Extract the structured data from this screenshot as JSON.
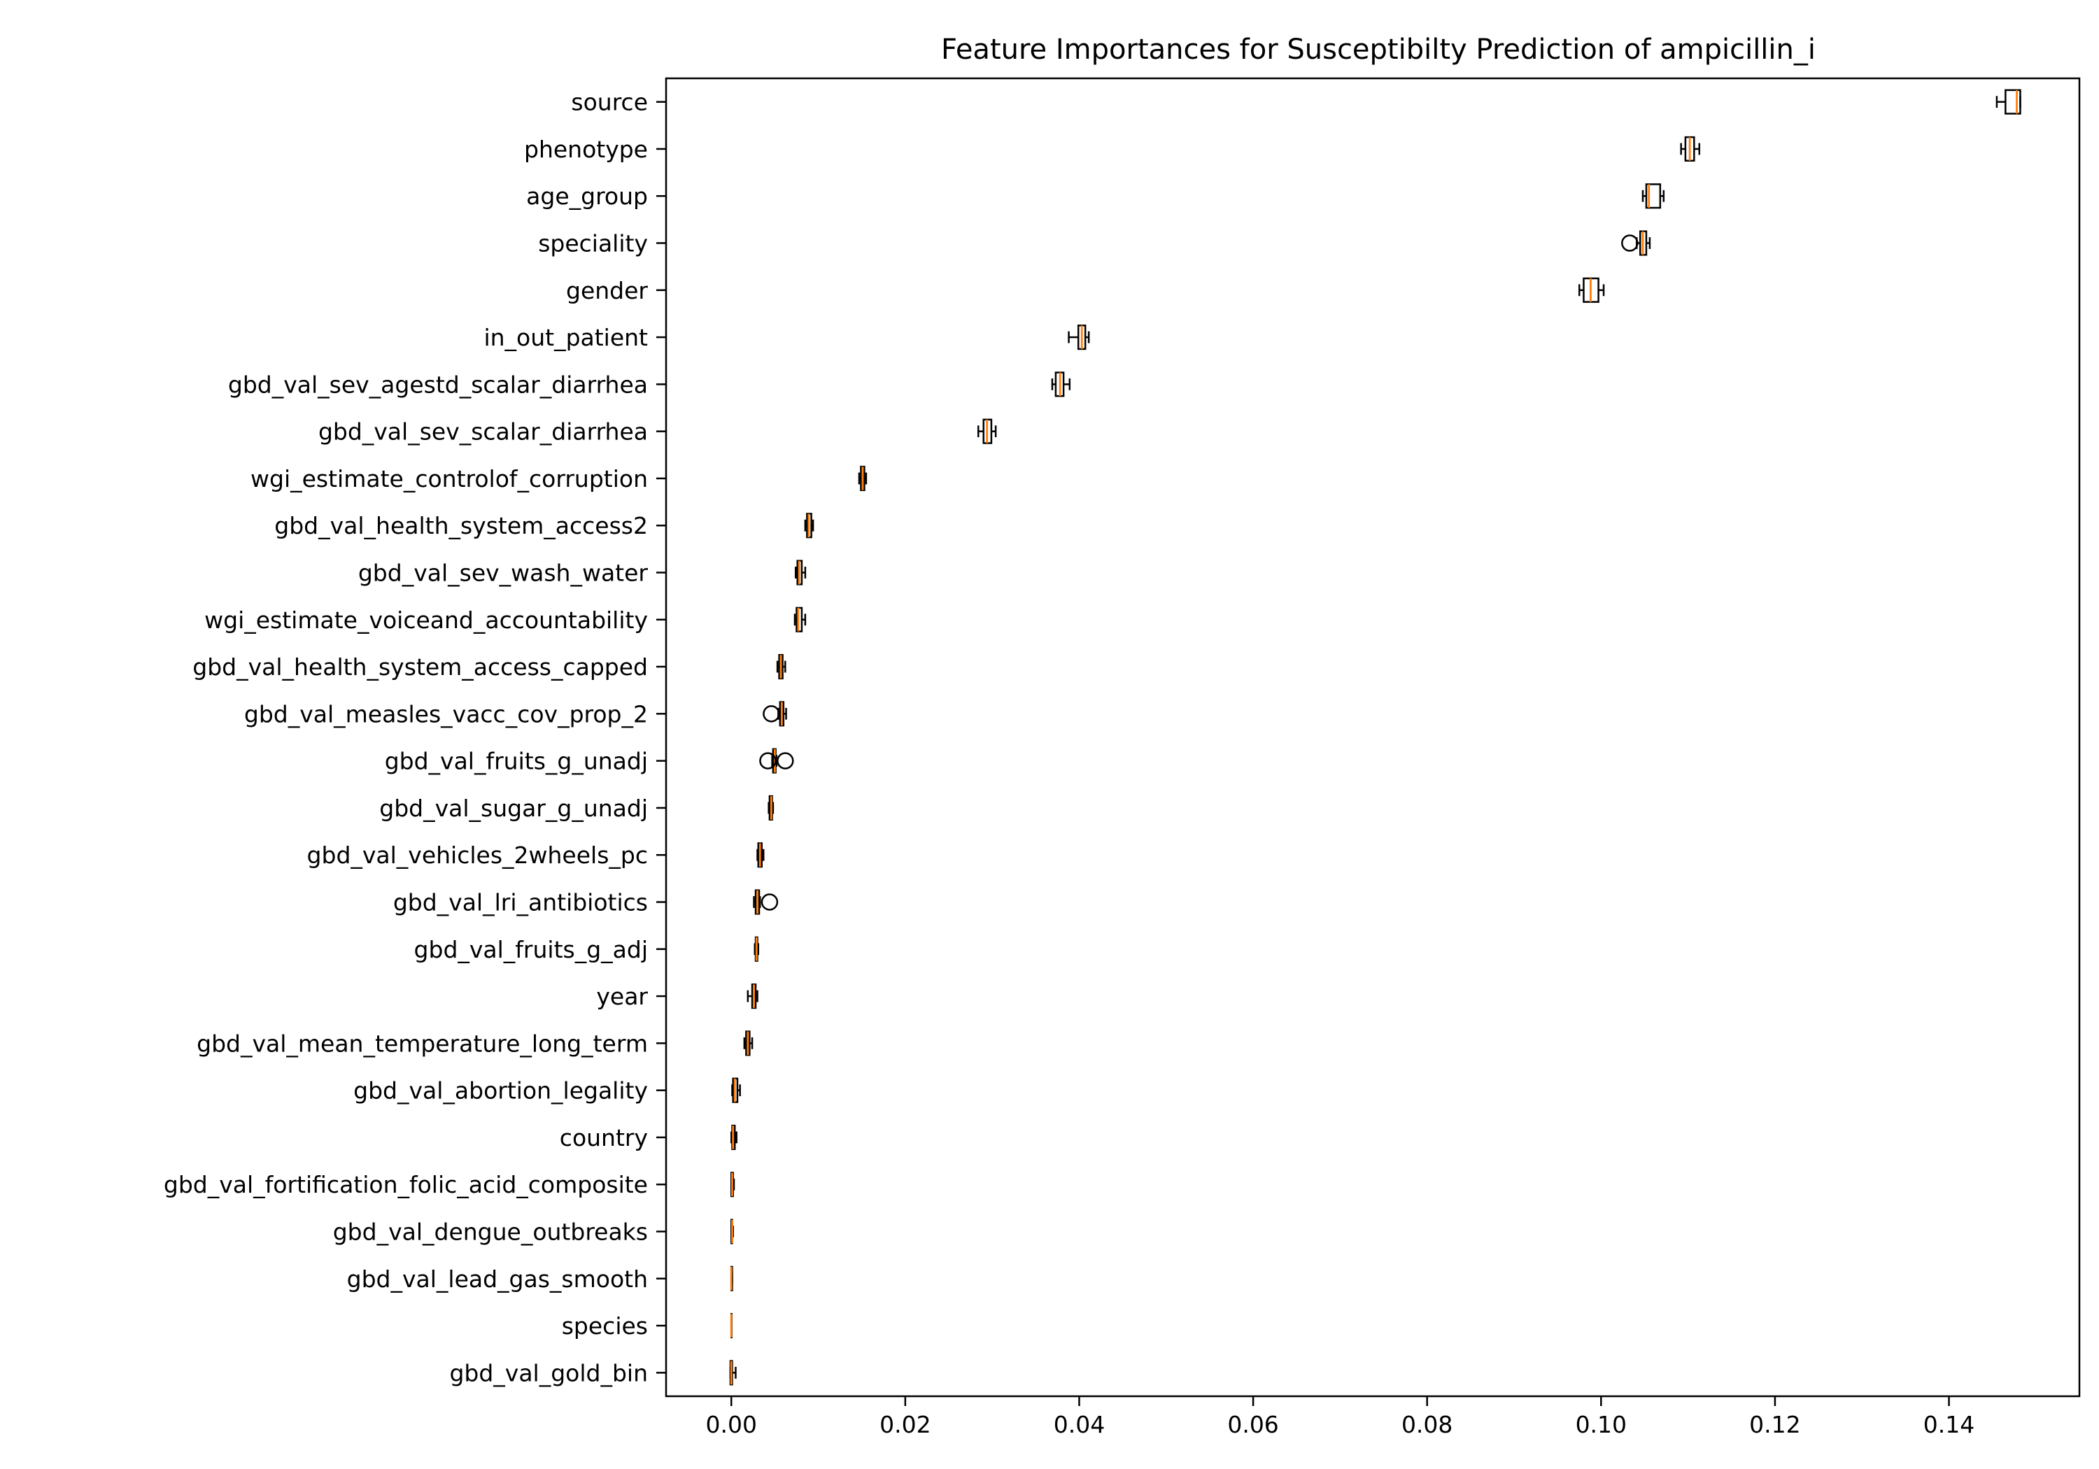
{
  "chart_data": {
    "type": "box",
    "title": "Feature Importances for Susceptibilty Prediction of ampicillin_i",
    "xlabel": "",
    "ylabel": "",
    "xlim": [
      -0.0075,
      0.155
    ],
    "x_ticks": [
      0.0,
      0.02,
      0.04,
      0.06,
      0.08,
      0.1,
      0.12,
      0.14
    ],
    "x_tick_labels": [
      "0.00",
      "0.02",
      "0.04",
      "0.06",
      "0.08",
      "0.10",
      "0.12",
      "0.14"
    ],
    "grid": false,
    "legend": "none",
    "colors": {
      "box": "#000000",
      "median": "#ff7f0e",
      "flier": "#000000"
    },
    "features": [
      {
        "name": "source",
        "whisker_low": 0.1455,
        "q1": 0.1465,
        "median": 0.1478,
        "q3": 0.1482,
        "whisker_high": 0.1482,
        "outliers": []
      },
      {
        "name": "phenotype",
        "whisker_low": 0.1092,
        "q1": 0.1097,
        "median": 0.1102,
        "q3": 0.1107,
        "whisker_high": 0.1113,
        "outliers": []
      },
      {
        "name": "age_group",
        "whisker_low": 0.1048,
        "q1": 0.1052,
        "median": 0.1055,
        "q3": 0.1068,
        "whisker_high": 0.1072,
        "outliers": []
      },
      {
        "name": "speciality",
        "whisker_low": 0.1041,
        "q1": 0.1045,
        "median": 0.1048,
        "q3": 0.1052,
        "whisker_high": 0.1056,
        "outliers": [
          0.1033
        ]
      },
      {
        "name": "gender",
        "whisker_low": 0.0975,
        "q1": 0.098,
        "median": 0.0988,
        "q3": 0.0997,
        "whisker_high": 0.1003,
        "outliers": []
      },
      {
        "name": "in_out_patient",
        "whisker_low": 0.0388,
        "q1": 0.0399,
        "median": 0.0403,
        "q3": 0.0407,
        "whisker_high": 0.0411,
        "outliers": []
      },
      {
        "name": "gbd_val_sev_agestd_scalar_diarrhea",
        "whisker_low": 0.0369,
        "q1": 0.0373,
        "median": 0.0378,
        "q3": 0.0382,
        "whisker_high": 0.0389,
        "outliers": []
      },
      {
        "name": "gbd_val_sev_scalar_diarrhea",
        "whisker_low": 0.0284,
        "q1": 0.029,
        "median": 0.0294,
        "q3": 0.0299,
        "whisker_high": 0.0304,
        "outliers": []
      },
      {
        "name": "wgi_estimate_controlof_corruption",
        "whisker_low": 0.0147,
        "q1": 0.0149,
        "median": 0.0151,
        "q3": 0.0153,
        "whisker_high": 0.0155,
        "outliers": []
      },
      {
        "name": "gbd_val_health_system_access2",
        "whisker_low": 0.0085,
        "q1": 0.0087,
        "median": 0.0089,
        "q3": 0.0092,
        "whisker_high": 0.0094,
        "outliers": []
      },
      {
        "name": "gbd_val_sev_wash_water",
        "whisker_low": 0.0074,
        "q1": 0.0076,
        "median": 0.0078,
        "q3": 0.0081,
        "whisker_high": 0.0085,
        "outliers": []
      },
      {
        "name": "wgi_estimate_voiceand_accountability",
        "whisker_low": 0.0073,
        "q1": 0.0075,
        "median": 0.0077,
        "q3": 0.0081,
        "whisker_high": 0.0085,
        "outliers": []
      },
      {
        "name": "gbd_val_health_system_access_capped",
        "whisker_low": 0.0053,
        "q1": 0.0055,
        "median": 0.0057,
        "q3": 0.0059,
        "whisker_high": 0.0062,
        "outliers": []
      },
      {
        "name": "gbd_val_measles_vacc_cov_prop_2",
        "whisker_low": 0.0054,
        "q1": 0.0056,
        "median": 0.0058,
        "q3": 0.006,
        "whisker_high": 0.0063,
        "outliers": [
          0.0046
        ]
      },
      {
        "name": "gbd_val_fruits_g_unadj",
        "whisker_low": 0.0047,
        "q1": 0.0048,
        "median": 0.005,
        "q3": 0.0051,
        "whisker_high": 0.0052,
        "outliers": [
          0.0042,
          0.0062
        ]
      },
      {
        "name": "gbd_val_sugar_g_unadj",
        "whisker_low": 0.0043,
        "q1": 0.0044,
        "median": 0.0046,
        "q3": 0.0047,
        "whisker_high": 0.0048,
        "outliers": []
      },
      {
        "name": "gbd_val_vehicles_2wheels_pc",
        "whisker_low": 0.003,
        "q1": 0.0031,
        "median": 0.0033,
        "q3": 0.0035,
        "whisker_high": 0.0037,
        "outliers": []
      },
      {
        "name": "gbd_val_lri_antibiotics",
        "whisker_low": 0.0026,
        "q1": 0.0028,
        "median": 0.003,
        "q3": 0.0032,
        "whisker_high": 0.0033,
        "outliers": [
          0.0044
        ]
      },
      {
        "name": "gbd_val_fruits_g_adj",
        "whisker_low": 0.0027,
        "q1": 0.0028,
        "median": 0.0029,
        "q3": 0.003,
        "whisker_high": 0.0031,
        "outliers": []
      },
      {
        "name": "year",
        "whisker_low": 0.0019,
        "q1": 0.0024,
        "median": 0.0026,
        "q3": 0.0028,
        "whisker_high": 0.003,
        "outliers": []
      },
      {
        "name": "gbd_val_mean_temperature_long_term",
        "whisker_low": 0.0015,
        "q1": 0.0017,
        "median": 0.0019,
        "q3": 0.0021,
        "whisker_high": 0.0024,
        "outliers": []
      },
      {
        "name": "gbd_val_abortion_legality",
        "whisker_low": 0.0001,
        "q1": 0.0002,
        "median": 0.0004,
        "q3": 0.0007,
        "whisker_high": 0.001,
        "outliers": []
      },
      {
        "name": "country",
        "whisker_low": 0.0,
        "q1": 0.0001,
        "median": 0.0002,
        "q3": 0.0004,
        "whisker_high": 0.0006,
        "outliers": []
      },
      {
        "name": "gbd_val_fortification_folic_acid_composite",
        "whisker_low": 0.0,
        "q1": 0.0,
        "median": 0.0001,
        "q3": 0.0002,
        "whisker_high": 0.0003,
        "outliers": []
      },
      {
        "name": "gbd_val_dengue_outbreaks",
        "whisker_low": 0.0,
        "q1": 0.0,
        "median": 0.0001,
        "q3": 0.0001,
        "whisker_high": 0.0002,
        "outliers": []
      },
      {
        "name": "gbd_val_lead_gas_smooth",
        "whisker_low": 0.0,
        "q1": 0.0,
        "median": 0.0,
        "q3": 0.0001,
        "whisker_high": 0.0001,
        "outliers": []
      },
      {
        "name": "species",
        "whisker_low": 0.0,
        "q1": 0.0,
        "median": 0.0,
        "q3": 0.0,
        "whisker_high": 0.0,
        "outliers": []
      },
      {
        "name": "gbd_val_gold_bin",
        "whisker_low": -0.0001,
        "q1": -0.0001,
        "median": 0.0,
        "q3": 0.0001,
        "whisker_high": 0.0005,
        "outliers": []
      }
    ]
  }
}
